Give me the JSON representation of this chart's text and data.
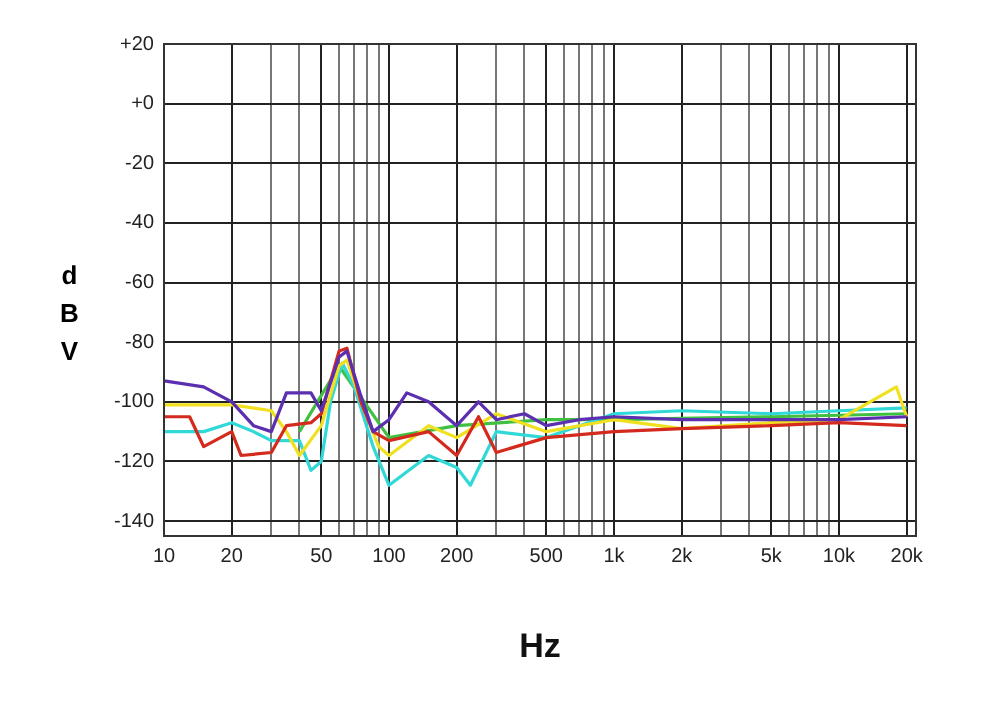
{
  "chart_data": {
    "type": "line",
    "xlabel": "Hz",
    "ylabel": "dBV",
    "log": "x",
    "grid": true,
    "legend": false,
    "marker": "none",
    "line_style": "solid",
    "xlim": [
      10,
      22000
    ],
    "ylim": [
      -145,
      20
    ],
    "xticks": [
      10,
      {
        "value": 20,
        "label": "20"
      },
      {
        "value": 30,
        "label": null
      },
      {
        "value": 40,
        "label": null
      },
      50,
      {
        "value": 60,
        "label": null
      },
      {
        "value": 70,
        "label": null
      },
      {
        "value": 80,
        "label": null
      },
      {
        "value": 90,
        "label": null
      },
      100,
      200,
      {
        "value": 300,
        "label": null
      },
      {
        "value": 400,
        "label": null
      },
      500,
      {
        "value": 600,
        "label": null
      },
      {
        "value": 700,
        "label": null
      },
      {
        "value": 800,
        "label": null
      },
      {
        "value": 900,
        "label": null
      },
      {
        "value": 1000,
        "label": "1k"
      },
      {
        "value": 2000,
        "label": "2k"
      },
      {
        "value": 3000,
        "label": null
      },
      {
        "value": 4000,
        "label": null
      },
      {
        "value": 5000,
        "label": "5k"
      },
      {
        "value": 6000,
        "label": null
      },
      {
        "value": 7000,
        "label": null
      },
      {
        "value": 8000,
        "label": null
      },
      {
        "value": 9000,
        "label": null
      },
      {
        "value": 10000,
        "label": "10k"
      },
      {
        "value": 20000,
        "label": "20k"
      }
    ],
    "yticks": [
      -140,
      -120,
      -100,
      -80,
      -60,
      -40,
      -20,
      {
        "value": 0,
        "label": "+0"
      },
      {
        "value": 20,
        "label": "+20"
      }
    ],
    "series": [
      {
        "color": "#5b2fb0",
        "x": [
          10,
          15,
          20,
          25,
          30,
          35,
          45,
          50,
          60,
          65,
          75,
          85,
          100,
          120,
          150,
          200,
          250,
          300,
          400,
          500,
          700,
          1000,
          2000,
          5000,
          10000,
          20000
        ],
        "values": [
          -93,
          -95,
          -100,
          -108,
          -110,
          -97,
          -97,
          -103,
          -85,
          -83,
          -98,
          -110,
          -106,
          -97,
          -100,
          -108,
          -100,
          -106,
          -104,
          -108,
          -106,
          -105,
          -106,
          -106,
          -106,
          -105
        ]
      },
      {
        "color": "#d42a1e",
        "x": [
          10,
          13,
          15,
          20,
          22,
          30,
          35,
          45,
          50,
          60,
          65,
          75,
          85,
          100,
          150,
          200,
          250,
          300,
          500,
          1000,
          2000,
          5000,
          10000,
          20000
        ],
        "values": [
          -105,
          -105,
          -115,
          -110,
          -118,
          -117,
          -108,
          -107,
          -104,
          -83,
          -82,
          -100,
          -110,
          -113,
          -110,
          -118,
          -105,
          -117,
          -112,
          -110,
          -109,
          -108,
          -107,
          -108
        ]
      },
      {
        "color": "#f0e020",
        "x": [
          10,
          20,
          30,
          35,
          40,
          50,
          60,
          65,
          75,
          90,
          100,
          150,
          200,
          300,
          500,
          1000,
          2000,
          5000,
          10000,
          18000,
          20000
        ],
        "values": [
          -101,
          -101,
          -103,
          -110,
          -118,
          -108,
          -88,
          -86,
          -100,
          -115,
          -118,
          -108,
          -112,
          -104,
          -110,
          -106,
          -109,
          -107,
          -106,
          -95,
          -105
        ]
      },
      {
        "color": "#30d8d8",
        "x": [
          10,
          15,
          20,
          25,
          30,
          40,
          45,
          50,
          55,
          62,
          70,
          85,
          100,
          150,
          200,
          230,
          300,
          500,
          1000,
          2000,
          5000,
          10000,
          20000
        ],
        "values": [
          -110,
          -110,
          -107,
          -110,
          -113,
          -113,
          -123,
          -120,
          -100,
          -87,
          -95,
          -115,
          -128,
          -118,
          -122,
          -128,
          -110,
          -112,
          -104,
          -103,
          -104,
          -103,
          -102
        ]
      },
      {
        "color": "#40c040",
        "x": [
          40,
          60,
          100,
          200,
          500,
          1000,
          5000,
          20000
        ],
        "values": [
          -110,
          -88,
          -112,
          -108,
          -106,
          -106,
          -105,
          -104
        ]
      }
    ]
  }
}
